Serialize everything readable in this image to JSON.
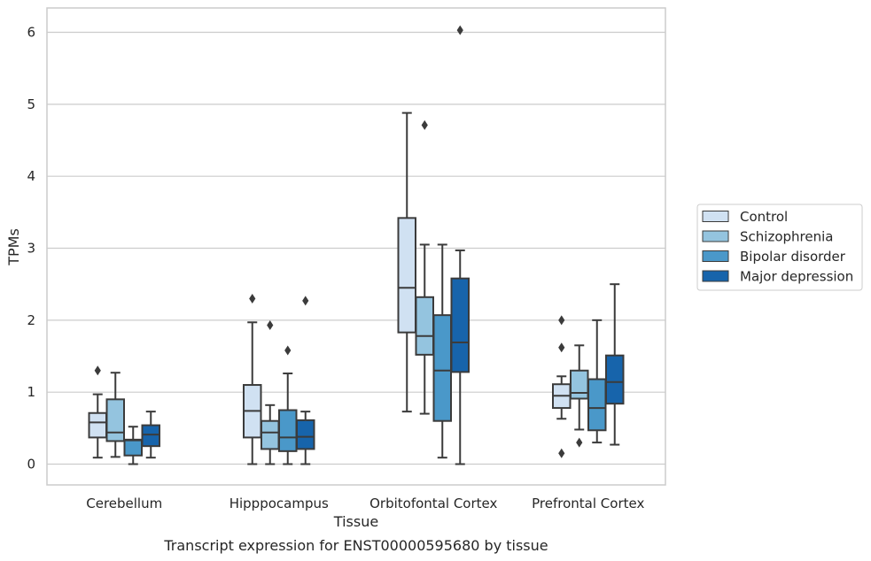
{
  "caption": "Transcript expression for ENST00000595680 by tissue",
  "chart_data": {
    "type": "boxplot",
    "xlabel": "Tissue",
    "ylabel": "TPMs",
    "ylim": [
      -0.3,
      6.33
    ],
    "yticks": [
      "0",
      "1",
      "2",
      "3",
      "4",
      "5",
      "6"
    ],
    "grid": "horizontal",
    "legend_placement": "right",
    "categories": [
      "Cerebellum",
      "Hipppocampus",
      "Orbitofontal Cortex",
      "Prefrontal Cortex"
    ],
    "series": [
      {
        "name": "Control",
        "color": "#d0e1f2",
        "boxes": [
          {
            "whislo": 0.09,
            "q1": 0.37,
            "med": 0.58,
            "q3": 0.71,
            "whishi": 0.97,
            "fliers": [
              1.3
            ]
          },
          {
            "whislo": 0.0,
            "q1": 0.37,
            "med": 0.74,
            "q3": 1.1,
            "whishi": 1.97,
            "fliers": [
              2.3
            ]
          },
          {
            "whislo": 0.73,
            "q1": 1.83,
            "med": 2.45,
            "q3": 3.42,
            "whishi": 4.88,
            "fliers": []
          },
          {
            "whislo": 0.63,
            "q1": 0.78,
            "med": 0.95,
            "q3": 1.11,
            "whishi": 1.22,
            "fliers": [
              2.0,
              1.62,
              0.15
            ]
          }
        ]
      },
      {
        "name": "Schizophrenia",
        "color": "#94c4df",
        "boxes": [
          {
            "whislo": 0.1,
            "q1": 0.32,
            "med": 0.44,
            "q3": 0.9,
            "whishi": 1.27,
            "fliers": []
          },
          {
            "whislo": 0.0,
            "q1": 0.21,
            "med": 0.44,
            "q3": 0.6,
            "whishi": 0.82,
            "fliers": [
              1.93
            ]
          },
          {
            "whislo": 0.7,
            "q1": 1.52,
            "med": 1.78,
            "q3": 2.32,
            "whishi": 3.05,
            "fliers": [
              4.71
            ]
          },
          {
            "whislo": 0.48,
            "q1": 0.91,
            "med": 0.99,
            "q3": 1.3,
            "whishi": 1.65,
            "fliers": [
              0.3
            ]
          }
        ]
      },
      {
        "name": "Bipolar disorder",
        "color": "#4a98c9",
        "boxes": [
          {
            "whislo": 0.0,
            "q1": 0.12,
            "med": 0.33,
            "q3": 0.34,
            "whishi": 0.52,
            "fliers": []
          },
          {
            "whislo": 0.0,
            "q1": 0.18,
            "med": 0.37,
            "q3": 0.75,
            "whishi": 1.26,
            "fliers": [
              1.58
            ]
          },
          {
            "whislo": 0.09,
            "q1": 0.6,
            "med": 1.3,
            "q3": 2.07,
            "whishi": 3.05,
            "fliers": []
          },
          {
            "whislo": 0.3,
            "q1": 0.47,
            "med": 0.78,
            "q3": 1.18,
            "whishi": 2.0,
            "fliers": []
          }
        ]
      },
      {
        "name": "Major depression",
        "color": "#1764ab",
        "boxes": [
          {
            "whislo": 0.09,
            "q1": 0.25,
            "med": 0.41,
            "q3": 0.54,
            "whishi": 0.73,
            "fliers": []
          },
          {
            "whislo": 0.0,
            "q1": 0.21,
            "med": 0.38,
            "q3": 0.61,
            "whishi": 0.73,
            "fliers": [
              2.27
            ]
          },
          {
            "whislo": 0.0,
            "q1": 1.28,
            "med": 1.69,
            "q3": 2.58,
            "whishi": 2.97,
            "fliers": [
              6.03
            ]
          },
          {
            "whislo": 0.27,
            "q1": 0.84,
            "med": 1.14,
            "q3": 1.51,
            "whishi": 2.5,
            "fliers": []
          }
        ]
      }
    ]
  }
}
